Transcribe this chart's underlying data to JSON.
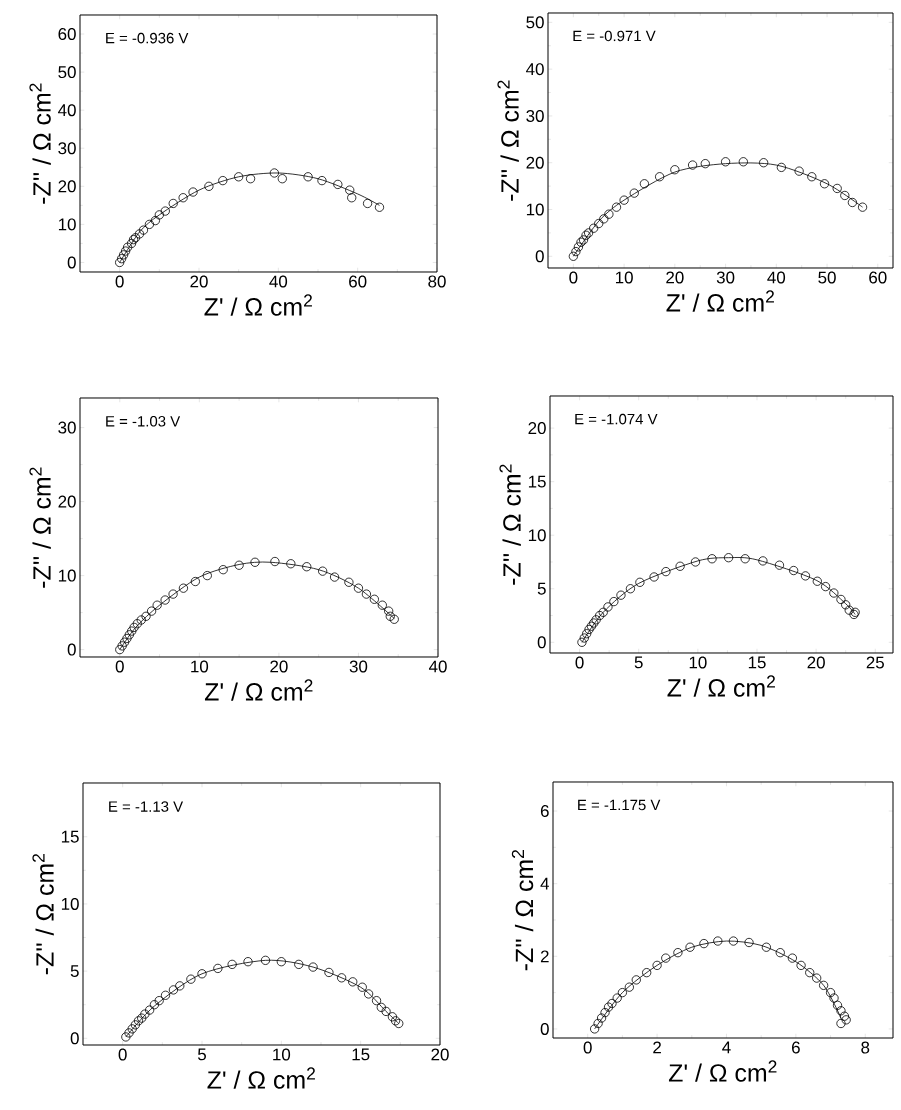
{
  "chart_data": [
    {
      "type": "scatter",
      "xlabel": "Z' / Ω cm$^{2}$",
      "ylabel": "-Z'' / Ω cm$^{2}$",
      "annotations": [
        "E = -0.936 V"
      ],
      "xlim": [
        -10,
        80
      ],
      "ylim": [
        -2.5,
        65
      ],
      "xticks": [
        0,
        20,
        40,
        60,
        80
      ],
      "yticks": [
        0,
        10,
        20,
        30,
        40,
        50,
        60
      ],
      "series": [
        {
          "marker": "circle",
          "color": "#000000",
          "x": [
            0,
            0.5,
            1,
            1.5,
            2,
            3,
            3.5,
            4,
            5,
            6,
            7.5,
            9,
            10,
            11.5,
            13.5,
            16,
            18.5,
            22.5,
            26,
            30,
            33,
            39,
            41,
            47.5,
            51,
            55,
            58,
            58.5,
            62.5,
            65.5
          ],
          "values": [
            0,
            1,
            2,
            3,
            4,
            5,
            6,
            6.5,
            7.5,
            8.5,
            10,
            11,
            12.5,
            13.5,
            15.5,
            17,
            18.5,
            20,
            21.5,
            22.5,
            22,
            23.5,
            22,
            22.5,
            21.5,
            20.5,
            19,
            17,
            15.5,
            14.5
          ]
        },
        {
          "type": "line",
          "color": "#000000",
          "x": [
            0,
            5,
            10,
            20,
            30,
            40,
            50,
            60,
            65.5
          ],
          "values": [
            0,
            8,
            12.5,
            19,
            22.5,
            23.5,
            22,
            18,
            15
          ]
        }
      ]
    },
    {
      "type": "scatter",
      "xlabel": "Z' / Ω cm$^{2}$",
      "ylabel": "-Z'' / Ω cm$^{2}$",
      "annotations": [
        "E = -0.971 V"
      ],
      "xlim": [
        -5,
        63
      ],
      "ylim": [
        -2.5,
        52
      ],
      "xticks": [
        0,
        10,
        20,
        30,
        40,
        50,
        60
      ],
      "yticks": [
        0,
        10,
        20,
        30,
        40,
        50
      ],
      "series": [
        {
          "marker": "circle",
          "color": "#000000",
          "x": [
            0,
            0.5,
            1,
            1.5,
            2,
            2.5,
            3,
            4,
            5,
            6,
            7,
            8.5,
            10,
            12,
            14,
            17,
            20,
            23.5,
            26,
            30,
            33.5,
            37.5,
            41,
            44.5,
            47,
            49.5,
            52,
            53.5,
            55,
            57
          ],
          "values": [
            0,
            1,
            2,
            3,
            3.5,
            4.5,
            5,
            6,
            7,
            8,
            9,
            10.5,
            12,
            13.5,
            15.5,
            17,
            18.5,
            19.5,
            19.8,
            20.2,
            20.2,
            20,
            19,
            18.2,
            17,
            15.5,
            14.5,
            13,
            11.5,
            10.5
          ]
        },
        {
          "type": "line",
          "color": "#000000",
          "x": [
            0,
            5,
            10,
            20,
            30,
            40,
            50,
            57
          ],
          "values": [
            0,
            7.5,
            12,
            18,
            19.8,
            19.5,
            15.5,
            10.5
          ]
        }
      ]
    },
    {
      "type": "scatter",
      "xlabel": "Z' / Ω cm$^{2}$",
      "ylabel": "-Z'' / Ω cm$^{2}$",
      "annotations": [
        "E = -1.03 V"
      ],
      "xlim": [
        -5,
        40
      ],
      "ylim": [
        -1,
        34
      ],
      "xticks": [
        0,
        10,
        20,
        30,
        40
      ],
      "yticks": [
        0,
        10,
        20,
        30
      ],
      "series": [
        {
          "marker": "circle",
          "color": "#000000",
          "x": [
            0,
            0.3,
            0.6,
            0.9,
            1.2,
            1.5,
            1.8,
            2.2,
            2.7,
            3.3,
            4,
            4.7,
            5.7,
            6.7,
            8,
            9.5,
            11,
            13,
            15,
            17,
            19.5,
            21.5,
            23.5,
            25.5,
            27,
            28.8,
            30,
            31,
            32,
            33,
            33.8,
            34,
            34.5
          ],
          "values": [
            0,
            0.5,
            1,
            1.5,
            2,
            2.5,
            3,
            3.5,
            4,
            4.5,
            5.2,
            6,
            6.7,
            7.5,
            8.3,
            9.2,
            10,
            10.8,
            11.4,
            11.8,
            11.9,
            11.6,
            11.2,
            10.6,
            9.8,
            9.1,
            8.3,
            7.5,
            6.8,
            6,
            5.2,
            4.5,
            4.1
          ]
        },
        {
          "type": "line",
          "color": "#000000",
          "x": [
            0,
            2,
            5,
            10,
            15,
            19,
            25,
            30,
            34.5
          ],
          "values": [
            0,
            3,
            6,
            9.8,
            11.5,
            11.8,
            10.8,
            8.3,
            4.2
          ]
        }
      ]
    },
    {
      "type": "scatter",
      "xlabel": "Z' / Ω cm$^{2}$",
      "ylabel": "-Z'' / Ω cm$^{2}$",
      "annotations": [
        "E = -1.074 V"
      ],
      "xlim": [
        -2.5,
        26.5
      ],
      "ylim": [
        -1,
        23
      ],
      "xticks": [
        0,
        5,
        10,
        15,
        20,
        25
      ],
      "yticks": [
        0,
        5,
        10,
        15,
        20
      ],
      "series": [
        {
          "marker": "circle",
          "color": "#000000",
          "x": [
            0.2,
            0.4,
            0.6,
            0.8,
            1,
            1.2,
            1.4,
            1.7,
            2,
            2.4,
            2.9,
            3.5,
            4.3,
            5.1,
            6.3,
            7.3,
            8.5,
            9.8,
            11.2,
            12.6,
            14,
            15.5,
            16.9,
            18.1,
            19.1,
            20.1,
            20.8,
            21.5,
            22.1,
            22.5,
            22.8,
            23.2,
            23.3
          ],
          "values": [
            0,
            0.4,
            0.8,
            1.2,
            1.5,
            1.8,
            2.1,
            2.5,
            2.8,
            3.3,
            3.8,
            4.4,
            5,
            5.6,
            6.1,
            6.6,
            7.1,
            7.5,
            7.8,
            7.9,
            7.8,
            7.6,
            7.2,
            6.7,
            6.2,
            5.7,
            5.2,
            4.6,
            4,
            3.5,
            3,
            2.6,
            2.8
          ]
        },
        {
          "type": "line",
          "color": "#000000",
          "x": [
            0.2,
            2,
            5,
            10,
            12.6,
            15,
            20,
            22.5,
            23.3
          ],
          "values": [
            0,
            2.8,
            5.5,
            7.6,
            7.9,
            7.7,
            5.8,
            3.6,
            2.6
          ]
        }
      ]
    },
    {
      "type": "scatter",
      "xlabel": "Z' / Ω cm$^{2}$",
      "ylabel": "-Z'' / Ω cm$^{2}$",
      "annotations": [
        "E = -1.13 V"
      ],
      "xlim": [
        -2.5,
        20
      ],
      "ylim": [
        -0.5,
        19
      ],
      "xticks": [
        0,
        5,
        10,
        15,
        20
      ],
      "yticks": [
        0,
        5,
        10,
        15
      ],
      "series": [
        {
          "marker": "circle",
          "color": "#000000",
          "x": [
            0.2,
            0.4,
            0.6,
            0.8,
            1,
            1.2,
            1.4,
            1.7,
            2,
            2.3,
            2.7,
            3.2,
            3.6,
            4.3,
            5,
            6,
            6.9,
            7.9,
            9,
            10,
            11.1,
            12,
            13,
            13.8,
            14.5,
            15.1,
            15.5,
            16,
            16.3,
            16.6,
            17,
            17.2,
            17.4
          ],
          "values": [
            0.1,
            0.4,
            0.7,
            1,
            1.3,
            1.5,
            1.8,
            2.1,
            2.5,
            2.8,
            3.2,
            3.6,
            3.9,
            4.4,
            4.8,
            5.2,
            5.5,
            5.7,
            5.8,
            5.7,
            5.5,
            5.3,
            4.9,
            4.5,
            4.2,
            3.8,
            3.3,
            2.8,
            2.3,
            2,
            1.6,
            1.3,
            1.1
          ]
        },
        {
          "type": "line",
          "color": "#000000",
          "x": [
            0.2,
            2,
            5,
            9,
            12,
            15,
            16.6,
            17.4
          ],
          "values": [
            0.1,
            2.4,
            4.8,
            5.8,
            5.3,
            3.8,
            2,
            1.1
          ]
        }
      ]
    },
    {
      "type": "scatter",
      "xlabel": "Z' / Ω cm$^{2}$",
      "ylabel": "-Z'' / Ω cm$^{2}$",
      "annotations": [
        "E = -1.175 V"
      ],
      "xlim": [
        -1,
        8.8
      ],
      "ylim": [
        -0.25,
        6.8
      ],
      "xticks": [
        0,
        2,
        4,
        6,
        8
      ],
      "yticks": [
        0,
        2,
        4,
        6
      ],
      "series": [
        {
          "marker": "circle",
          "color": "#000000",
          "x": [
            0.2,
            0.3,
            0.4,
            0.5,
            0.6,
            0.7,
            0.85,
            1,
            1.2,
            1.4,
            1.7,
            2,
            2.25,
            2.6,
            2.95,
            3.35,
            3.75,
            4.2,
            4.65,
            5.15,
            5.55,
            5.9,
            6.15,
            6.4,
            6.6,
            6.8,
            7,
            7.1,
            7.2,
            7.3,
            7.4,
            7.3,
            7.45
          ],
          "values": [
            0,
            0.15,
            0.3,
            0.45,
            0.6,
            0.7,
            0.85,
            1,
            1.15,
            1.35,
            1.55,
            1.75,
            1.95,
            2.1,
            2.25,
            2.35,
            2.42,
            2.42,
            2.38,
            2.25,
            2.1,
            1.95,
            1.75,
            1.55,
            1.4,
            1.2,
            1,
            0.85,
            0.65,
            0.5,
            0.35,
            0.15,
            0.25
          ]
        },
        {
          "type": "line",
          "color": "#000000",
          "x": [
            0.2,
            1,
            2,
            3,
            4,
            5,
            6,
            6.8,
            7.3
          ],
          "values": [
            0,
            1,
            1.75,
            2.25,
            2.42,
            2.3,
            1.85,
            1.2,
            0.3
          ]
        }
      ]
    }
  ]
}
